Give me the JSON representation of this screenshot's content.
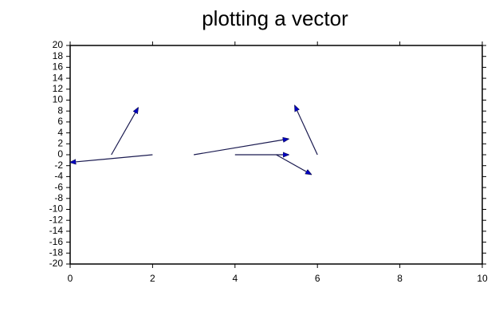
{
  "chart_data": {
    "type": "vector",
    "title": "plotting a vector",
    "x": [
      1,
      2,
      3,
      4,
      5,
      6
    ],
    "y": [
      0,
      0,
      0,
      0,
      0,
      0
    ],
    "x_end": [
      1.65,
      0,
      5.3,
      5.3,
      5.85,
      5.45
    ],
    "y_end": [
      8.6,
      -1.4,
      2.9,
      0,
      -3.6,
      9.0
    ],
    "color": "#1a1a50",
    "head_color": "#0000c0",
    "xlim": [
      0,
      10
    ],
    "ylim": [
      -20,
      20
    ],
    "xticks": [
      0,
      2,
      4,
      6,
      8,
      10
    ],
    "yticks": [
      -20,
      -18,
      -16,
      -14,
      -12,
      -10,
      -8,
      -6,
      -4,
      -2,
      0,
      2,
      4,
      6,
      8,
      10,
      12,
      14,
      16,
      18,
      20
    ]
  }
}
